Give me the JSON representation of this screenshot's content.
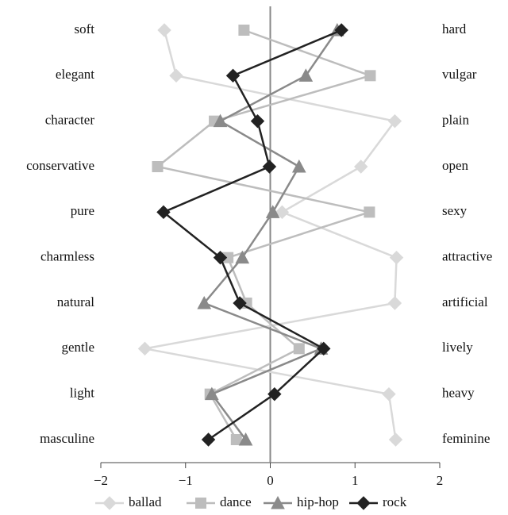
{
  "chart_data": {
    "type": "profile",
    "categories": [
      "soft",
      "elegant",
      "character",
      "conservative",
      "pure",
      "charmless",
      "natural",
      "gentle",
      "light",
      "masculine"
    ],
    "right_labels": [
      "hard",
      "vulgar",
      "plain",
      "open",
      "sexy",
      "attractive",
      "artificial",
      "lively",
      "heavy",
      "feminine"
    ],
    "series": [
      {
        "name": "ballad",
        "color": "#d9d9d9",
        "marker": "diamond",
        "values": [
          -1.25,
          -1.11,
          1.47,
          1.07,
          0.14,
          1.49,
          1.47,
          -1.48,
          1.4,
          1.48
        ]
      },
      {
        "name": "dance",
        "color": "#bdbdbd",
        "marker": "square",
        "values": [
          -0.31,
          1.18,
          -0.66,
          -1.33,
          1.17,
          -0.5,
          -0.28,
          0.34,
          -0.71,
          -0.4
        ]
      },
      {
        "name": "hip-hop",
        "color": "#8a8a8a",
        "marker": "triangle",
        "values": [
          0.79,
          0.42,
          -0.59,
          0.34,
          0.03,
          -0.33,
          -0.78,
          0.6,
          -0.69,
          -0.29
        ]
      },
      {
        "name": "rock",
        "color": "#222222",
        "marker": "diamond",
        "values": [
          0.84,
          -0.44,
          -0.15,
          -0.01,
          -1.26,
          -0.59,
          -0.36,
          0.63,
          0.05,
          -0.73
        ]
      }
    ],
    "xlim": [
      -2,
      2
    ],
    "xticks": [
      {
        "value": -2,
        "label": "−2"
      },
      {
        "value": -1,
        "label": "−1"
      },
      0,
      1,
      2
    ],
    "zero_line": true,
    "legend": "bottom"
  }
}
